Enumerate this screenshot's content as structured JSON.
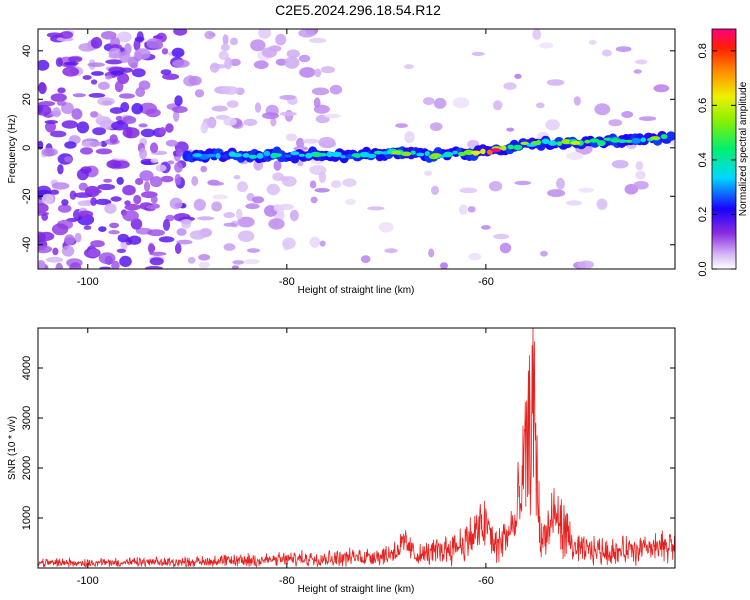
{
  "title": "C2E5.2024.296.18.54.R12",
  "chart_data": [
    {
      "type": "heatmap",
      "xlabel": "Height of straight line (km)",
      "ylabel": "Frequency (Hz)",
      "xlim": [
        -105,
        -41
      ],
      "ylim": [
        -50,
        49
      ],
      "xticks": [
        -100,
        -80,
        -60
      ],
      "yticks": [
        -40,
        -20,
        0,
        20,
        40
      ],
      "colorbar": {
        "label": "Normalized spectral amplitude",
        "range": [
          0.0,
          0.88
        ],
        "ticks": [
          0.0,
          0.2,
          0.4,
          0.6,
          0.8
        ],
        "tick_labels": [
          "0.0",
          "0.2",
          "0.4",
          "0.6",
          "0.8"
        ]
      },
      "ridge": [
        {
          "h": -89,
          "f": -3,
          "amp": 0.32
        },
        {
          "h": -85,
          "f": -3,
          "amp": 0.38
        },
        {
          "h": -81,
          "f": -3,
          "amp": 0.42
        },
        {
          "h": -77,
          "f": -3,
          "amp": 0.45
        },
        {
          "h": -73,
          "f": -3,
          "amp": 0.42
        },
        {
          "h": -69,
          "f": -2,
          "amp": 0.55
        },
        {
          "h": -65,
          "f": -3,
          "amp": 0.55
        },
        {
          "h": -61,
          "f": -2,
          "amp": 0.62
        },
        {
          "h": -59,
          "f": -1,
          "amp": 0.88
        },
        {
          "h": -55,
          "f": 2,
          "amp": 0.5
        },
        {
          "h": -51,
          "f": 2,
          "amp": 0.6
        },
        {
          "h": -47,
          "f": 3,
          "amp": 0.45
        },
        {
          "h": -43,
          "f": 4,
          "amp": 0.55
        }
      ]
    },
    {
      "type": "line",
      "xlabel": "Height of straight line (km)",
      "ylabel": "SNR (10 * v/v)",
      "xlim": [
        -105,
        -41
      ],
      "ylim": [
        0,
        4800
      ],
      "xticks": [
        -100,
        -80,
        -60
      ],
      "yticks": [
        1000,
        2000,
        3000,
        4000
      ],
      "color": "#e8201e",
      "envelope": [
        {
          "h": -105,
          "base": 130,
          "noise": 110
        },
        {
          "h": -92,
          "base": 140,
          "noise": 110
        },
        {
          "h": -82,
          "base": 200,
          "noise": 150
        },
        {
          "h": -74,
          "base": 260,
          "noise": 180
        },
        {
          "h": -70,
          "base": 320,
          "noise": 200
        },
        {
          "h": -68,
          "base": 600,
          "noise": 250
        },
        {
          "h": -67,
          "base": 300,
          "noise": 200
        },
        {
          "h": -64,
          "base": 480,
          "noise": 300
        },
        {
          "h": -62,
          "base": 650,
          "noise": 400
        },
        {
          "h": -60,
          "base": 1100,
          "noise": 500
        },
        {
          "h": -59,
          "base": 500,
          "noise": 400
        },
        {
          "h": -57,
          "base": 1100,
          "noise": 600
        },
        {
          "h": -56,
          "base": 2700,
          "noise": 600
        },
        {
          "h": -55.2,
          "base": 4100,
          "noise": 700
        },
        {
          "h": -54.5,
          "base": 600,
          "noise": 400
        },
        {
          "h": -53,
          "base": 1300,
          "noise": 600
        },
        {
          "h": -51,
          "base": 450,
          "noise": 300
        },
        {
          "h": -47,
          "base": 420,
          "noise": 300
        },
        {
          "h": -43,
          "base": 480,
          "noise": 300
        },
        {
          "h": -41,
          "base": 600,
          "noise": 400
        }
      ]
    }
  ]
}
